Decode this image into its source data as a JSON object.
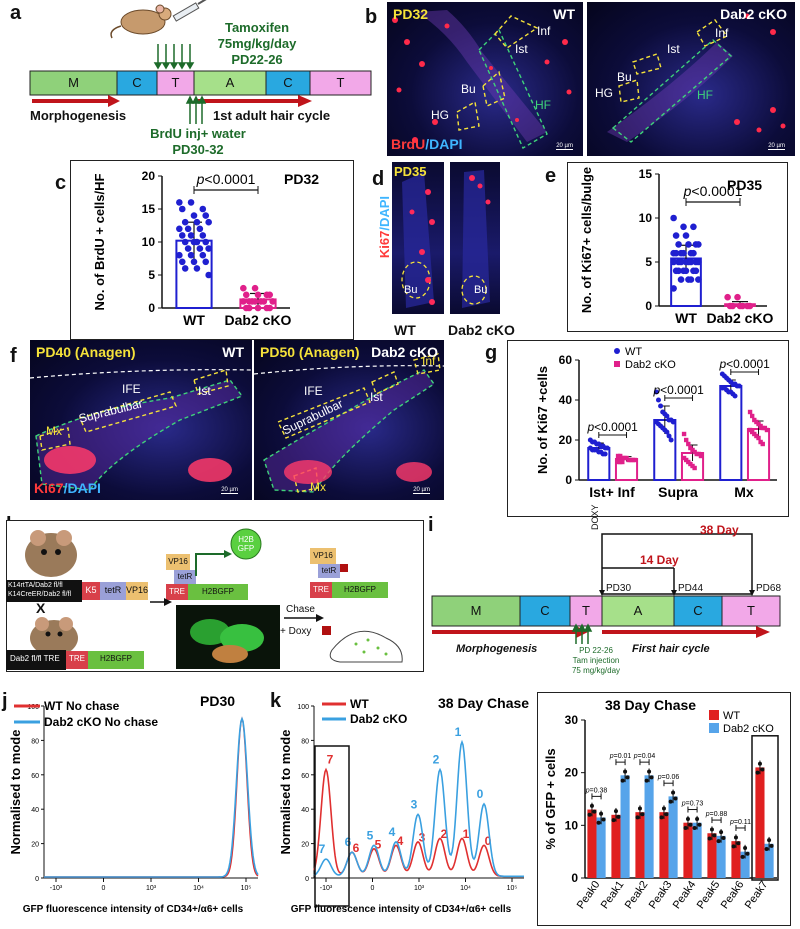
{
  "panels": {
    "a": {
      "label": "a",
      "tamoxifen": [
        "Tamoxifen",
        "75mg/kg/day",
        "PD22-26"
      ],
      "stages": [
        "M",
        "C",
        "T",
        "A",
        "C",
        "T"
      ],
      "morphogenesis": "Morphogenesis",
      "first_cycle": "1st adult hair cycle",
      "brdu": [
        "BrdU inj+ water",
        "PD30-32"
      ],
      "colors": {
        "M": "#8fd17a",
        "C": "#29a8e0",
        "T": "#f2a8e8",
        "A": "#a6e08a",
        "arrow": "#c0141b",
        "tam_text": "#1d6b2a"
      }
    },
    "b": {
      "label": "b",
      "left_tag": "PD32",
      "left_geno": "WT",
      "right_geno": "Dab2 cKO",
      "regions_left": [
        "Inf",
        "Ist",
        "Bu",
        "HG",
        "HF"
      ],
      "regions_right": [
        "Inf",
        "Ist",
        "Bu",
        "HG",
        "HF"
      ],
      "stain_red": "BrdU",
      "stain_blue": "/DAPI",
      "scale": "20 µm"
    },
    "c": {
      "label": "c",
      "pvalue": "p<0.0001",
      "tag": "PD32",
      "ylabel": "No. of BrdU + cells/HF"
    },
    "d": {
      "label": "d",
      "tag": "PD35",
      "stain_red": "Ki67",
      "stain_blue": "/DAPI",
      "bu": "Bu",
      "geno_left": "WT",
      "geno_right": "Dab2 cKO",
      "scale": "20 µm"
    },
    "e": {
      "label": "e",
      "pvalue": "p<0.0001",
      "tag": "PD35",
      "ylabel": "No. of Ki67+ cells/bulge"
    },
    "f": {
      "label": "f",
      "left_tag": "PD40 (Anagen)",
      "left_geno": "WT",
      "right_tag": "PD50 (Anagen)",
      "right_geno": "Dab2 cKO",
      "regions": [
        "IFE",
        "Ist",
        "Suprabulbar",
        "Mx",
        "Inf"
      ],
      "stain_red": "Ki67",
      "stain_blue": "/DAPI",
      "scale": "20 µm"
    },
    "g": {
      "label": "g",
      "ylabel": "No. of Ki67 +cells",
      "pvalue": "p<0.0001"
    },
    "h": {
      "label": "h",
      "genotype_1": [
        "K14rtTA/Dab2 fl/fl",
        "K14CreER/Dab2 fl/fl"
      ],
      "box_k5": "K5",
      "box_tetr": "tetR",
      "box_vp16": "VP16",
      "x": "X",
      "genotype_2": "Dab2 fl/fl TRE",
      "box_tre": "TRE",
      "box_h2bgfp": "H2BGFP",
      "h2b_gfp": [
        "H2B",
        "GFP"
      ],
      "chase": "Chase",
      "doxy": "+ Doxy"
    },
    "i": {
      "label": "i",
      "doxy": "DOXY",
      "day14": "14 Day",
      "day38": "38 Day",
      "pd30": "PD30",
      "pd44": "PD44",
      "pd68": "PD68",
      "stages": [
        "M",
        "C",
        "T",
        "A",
        "C",
        "T"
      ],
      "morphogenesis": "Morphogenesis",
      "first_cycle": "First hair cycle",
      "tam": [
        "PD 22-26",
        "Tam injection",
        "75 mg/kg/day"
      ]
    },
    "j": {
      "label": "j"
    },
    "k": {
      "label": "k"
    },
    "l": {
      "label": "l"
    }
  },
  "chart_data": [
    {
      "id": "c",
      "type": "bar",
      "title": "PD32",
      "categories": [
        "WT",
        "Dab2 cKO"
      ],
      "values": [
        10.2,
        1.3
      ],
      "errors": [
        2.8,
        0.9
      ],
      "ylabel": "No. of BrdU + cells/HF",
      "ylim": [
        0,
        20
      ],
      "yticks": [
        0,
        5,
        10,
        15,
        20
      ],
      "annotation": "p<0.0001",
      "points": [
        [
          16,
          16,
          15,
          15,
          14,
          14,
          13,
          13,
          13,
          12,
          12,
          12,
          11,
          11,
          11,
          10,
          10,
          10,
          10,
          9,
          9,
          9,
          8,
          8,
          8,
          7,
          7,
          7,
          6,
          6,
          5
        ],
        [
          3,
          3,
          2,
          2,
          2,
          2,
          1,
          1,
          1,
          1,
          1,
          1,
          1,
          0,
          0,
          0,
          0,
          0
        ]
      ],
      "colors": [
        "#1f1fd0",
        "#e0208a"
      ]
    },
    {
      "id": "e",
      "type": "bar",
      "title": "PD35",
      "categories": [
        "WT",
        "Dab2 cKO"
      ],
      "values": [
        5.4,
        0.2
      ],
      "errors": [
        1.5,
        0.3
      ],
      "ylabel": "No. of Ki67+ cells/bulge",
      "ylim": [
        0,
        15
      ],
      "yticks": [
        0,
        5,
        10,
        15
      ],
      "annotation": "p<0.0001",
      "points": [
        [
          10,
          9,
          9,
          8,
          8,
          7,
          7,
          7,
          7,
          6,
          6,
          6,
          6,
          6,
          6,
          5,
          5,
          5,
          5,
          5,
          5,
          5,
          5,
          4,
          4,
          4,
          4,
          4,
          4,
          3,
          3,
          3,
          3,
          2
        ],
        [
          1,
          1,
          0,
          0,
          0,
          0,
          0,
          0
        ]
      ],
      "colors": [
        "#1f1fd0",
        "#e0208a"
      ]
    },
    {
      "id": "g",
      "type": "bar",
      "categories": [
        "Ist+ Inf",
        "Supra",
        "Mx"
      ],
      "series": [
        {
          "name": "WT",
          "values": [
            16,
            30,
            47
          ],
          "errors": [
            2.5,
            7,
            3
          ],
          "color": "#1f1fd0",
          "points": [
            [
              20,
              19,
              19,
              18,
              18,
              17,
              17,
              16,
              16,
              16,
              15,
              15,
              15,
              14,
              14,
              13,
              13
            ],
            [
              44,
              40,
              37,
              34,
              33,
              32,
              30,
              30,
              29,
              29,
              28,
              27,
              26,
              25,
              24,
              22,
              20
            ],
            [
              53,
              52,
              51,
              50,
              49,
              48,
              48,
              47,
              47,
              46,
              46,
              45,
              44,
              44,
              43,
              42
            ]
          ]
        },
        {
          "name": "Dab2 cKO",
          "values": [
            10.5,
            13.5,
            25.5
          ],
          "errors": [
            1.2,
            4,
            4
          ],
          "color": "#e0208a",
          "points": [
            [
              12,
              12,
              11,
              11,
              11,
              10,
              10,
              10,
              10,
              9,
              9,
              9
            ],
            [
              23,
              20,
              18,
              16,
              15,
              14,
              13,
              13,
              12,
              11,
              10,
              9,
              8,
              7,
              6
            ],
            [
              34,
              32,
              30,
              29,
              28,
              27,
              26,
              26,
              25,
              25,
              24,
              23,
              22,
              21,
              19,
              18
            ]
          ]
        }
      ],
      "ylabel": "No. of Ki67 +cells",
      "ylim": [
        0,
        60
      ],
      "yticks": [
        0,
        20,
        40,
        60
      ],
      "annotations": [
        "p<0.0001",
        "p<0.0001",
        "p<0.0001"
      ]
    },
    {
      "id": "j",
      "type": "line",
      "title": "PD30",
      "series": [
        {
          "name": "WT No chase",
          "color": "#e03030"
        },
        {
          "name": "Dab2 cKO  No chase",
          "color": "#3aa0e0"
        }
      ],
      "xlabel": "GFP fluorescence intensity of CD34+/α6+ cells",
      "ylabel": "Normalised to mode",
      "xticks": [
        "-10³",
        "0",
        "10³",
        "10⁴",
        "10⁵"
      ],
      "yticks": [
        0,
        20,
        40,
        60,
        80,
        100
      ],
      "ylim": [
        0,
        100
      ],
      "peak_value": 92
    },
    {
      "id": "k",
      "type": "line",
      "title": "38 Day Chase",
      "series": [
        {
          "name": "WT",
          "color": "#e03030",
          "peak_labels": [
            "7",
            "6",
            "5",
            "4",
            "3",
            "2",
            "1",
            "0"
          ]
        },
        {
          "name": "Dab2 cKO",
          "color": "#3aa0e0",
          "peak_labels": [
            "7",
            "6",
            "5",
            "4",
            "3",
            "2",
            "1",
            "0"
          ]
        }
      ],
      "xlabel": "GFP fluorescence intensity of CD34+/α6+ cells",
      "ylabel": "Normalised to mode",
      "xticks": [
        "-10³",
        "0",
        "10³",
        "10⁴",
        "10⁵"
      ],
      "yticks": [
        0,
        20,
        40,
        60,
        80,
        100
      ],
      "ylim": [
        0,
        100
      ]
    },
    {
      "id": "l",
      "type": "bar",
      "title": "38 Day Chase",
      "categories": [
        "Peak0",
        "Peak1",
        "Peak2",
        "Peak3",
        "Peak4",
        "Peak5",
        "Peak6",
        "Peak7"
      ],
      "series": [
        {
          "name": "WT",
          "values": [
            13,
            12,
            12.5,
            12.5,
            10.5,
            8.5,
            7,
            21
          ],
          "color": "#e02020"
        },
        {
          "name": "Dab2 cKO",
          "values": [
            11.5,
            19.5,
            19.5,
            15.5,
            10.5,
            8,
            5,
            6.5
          ],
          "color": "#56a4ea"
        }
      ],
      "ylabel": "% of GFP + cells",
      "ylim": [
        0,
        30
      ],
      "yticks": [
        0,
        10,
        20,
        30
      ],
      "annotations": [
        "p=0.38",
        "p=0.01",
        "p=0.04",
        "p=0.06",
        "p=0.73",
        "p=0.88",
        "p=0.11",
        ""
      ]
    }
  ]
}
